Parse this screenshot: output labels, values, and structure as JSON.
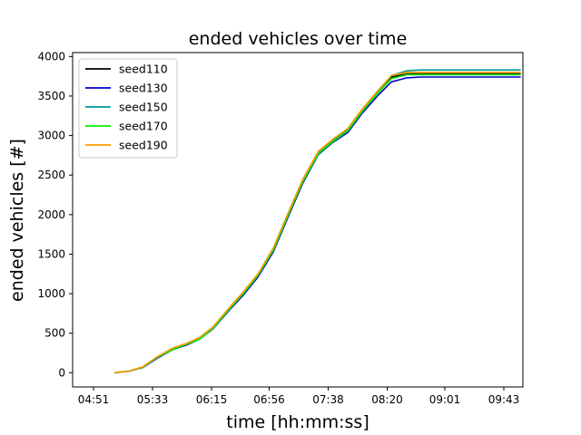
{
  "chart_data": {
    "type": "line",
    "title": "ended vehicles over time",
    "xlabel": "time [hh:mm:ss]",
    "ylabel": "ended vehicles [#]",
    "x_ticks": [
      "04:51",
      "05:33",
      "06:15",
      "06:56",
      "07:38",
      "08:20",
      "09:01",
      "09:43"
    ],
    "y_ticks": [
      0,
      500,
      1000,
      1500,
      2000,
      2500,
      3000,
      3500,
      4000
    ],
    "ylim": [
      -180,
      4050
    ],
    "grid": false,
    "legend_position": "top-left",
    "x": [
      "05:06",
      "05:16",
      "05:26",
      "05:36",
      "05:47",
      "05:57",
      "06:06",
      "06:16",
      "06:27",
      "06:38",
      "06:48",
      "06:59",
      "07:09",
      "07:20",
      "07:31",
      "07:41",
      "07:52",
      "08:02",
      "08:13",
      "08:23",
      "08:34",
      "08:44",
      "08:55",
      "09:05",
      "09:16",
      "09:26",
      "09:37",
      "09:47",
      "09:55"
    ],
    "series": [
      {
        "name": "seed110",
        "color": "#000000",
        "values": [
          0,
          20,
          70,
          190,
          300,
          360,
          430,
          570,
          800,
          1020,
          1240,
          1560,
          1980,
          2430,
          2780,
          2930,
          3070,
          3310,
          3540,
          3740,
          3780,
          3780,
          3780,
          3780,
          3780,
          3780,
          3780,
          3780,
          3780
        ]
      },
      {
        "name": "seed130",
        "color": "#0000cc",
        "values": [
          0,
          20,
          65,
          180,
          290,
          350,
          420,
          555,
          780,
          990,
          1210,
          1530,
          1950,
          2400,
          2760,
          2910,
          3040,
          3280,
          3500,
          3680,
          3730,
          3740,
          3740,
          3740,
          3740,
          3740,
          3740,
          3740,
          3740
        ]
      },
      {
        "name": "seed150",
        "color": "#009999",
        "values": [
          0,
          20,
          70,
          190,
          300,
          360,
          430,
          570,
          800,
          1020,
          1240,
          1560,
          1980,
          2430,
          2780,
          2930,
          3070,
          3310,
          3540,
          3760,
          3820,
          3830,
          3830,
          3830,
          3830,
          3830,
          3830,
          3830,
          3830
        ]
      },
      {
        "name": "seed170",
        "color": "#00ee00",
        "values": [
          0,
          20,
          70,
          190,
          290,
          360,
          420,
          560,
          790,
          1010,
          1230,
          1550,
          1970,
          2420,
          2770,
          2920,
          3060,
          3300,
          3530,
          3720,
          3770,
          3770,
          3770,
          3770,
          3770,
          3770,
          3770,
          3770,
          3770
        ]
      },
      {
        "name": "seed190",
        "color": "#ff9900",
        "values": [
          0,
          20,
          75,
          200,
          310,
          370,
          440,
          580,
          810,
          1030,
          1250,
          1580,
          2000,
          2450,
          2800,
          2950,
          3090,
          3330,
          3560,
          3760,
          3800,
          3800,
          3800,
          3800,
          3800,
          3800,
          3800,
          3800,
          3800
        ]
      }
    ]
  }
}
